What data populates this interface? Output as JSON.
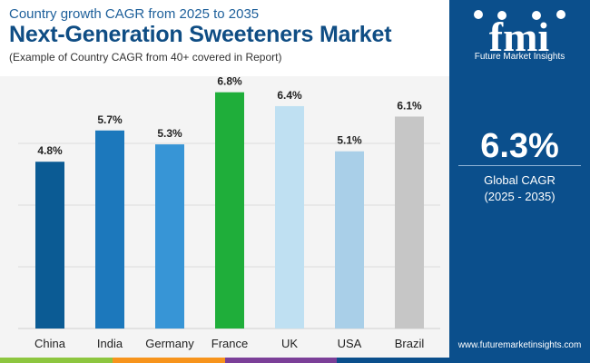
{
  "header": {
    "subtitle": "Country growth CAGR from 2025 to 2035",
    "title": "Next-Generation Sweeteners Market",
    "note": "(Example of Country CAGR from 40+ covered in Report)"
  },
  "chart_data": {
    "type": "bar",
    "categories": [
      "China",
      "India",
      "Germany",
      "France",
      "UK",
      "USA",
      "Brazil"
    ],
    "values": [
      4.8,
      5.7,
      5.3,
      6.8,
      6.4,
      5.1,
      6.1
    ],
    "labels": [
      "4.8%",
      "5.7%",
      "5.3%",
      "6.8%",
      "6.4%",
      "5.1%",
      "6.1%"
    ],
    "colors": [
      "#0b5b94",
      "#1c78bc",
      "#3795d6",
      "#1fae3a",
      "#bfe0f2",
      "#a9cfe8",
      "#c6c6c6"
    ],
    "ylim": [
      0,
      7
    ],
    "grid": true,
    "title": "",
    "xlabel": "",
    "ylabel": ""
  },
  "sidebar": {
    "brand": "fmi",
    "tagline": "Future Market Insights",
    "stat_value": "6.3%",
    "stat_label": "Global CAGR",
    "stat_period": "(2025 - 2035)",
    "website": "www.futuremarketinsights.com"
  },
  "colors": {
    "brand_blue": "#0b4f8c",
    "strip": [
      "#8dc63f",
      "#f7941d",
      "#7b3f98",
      "#0b4f8c"
    ]
  }
}
